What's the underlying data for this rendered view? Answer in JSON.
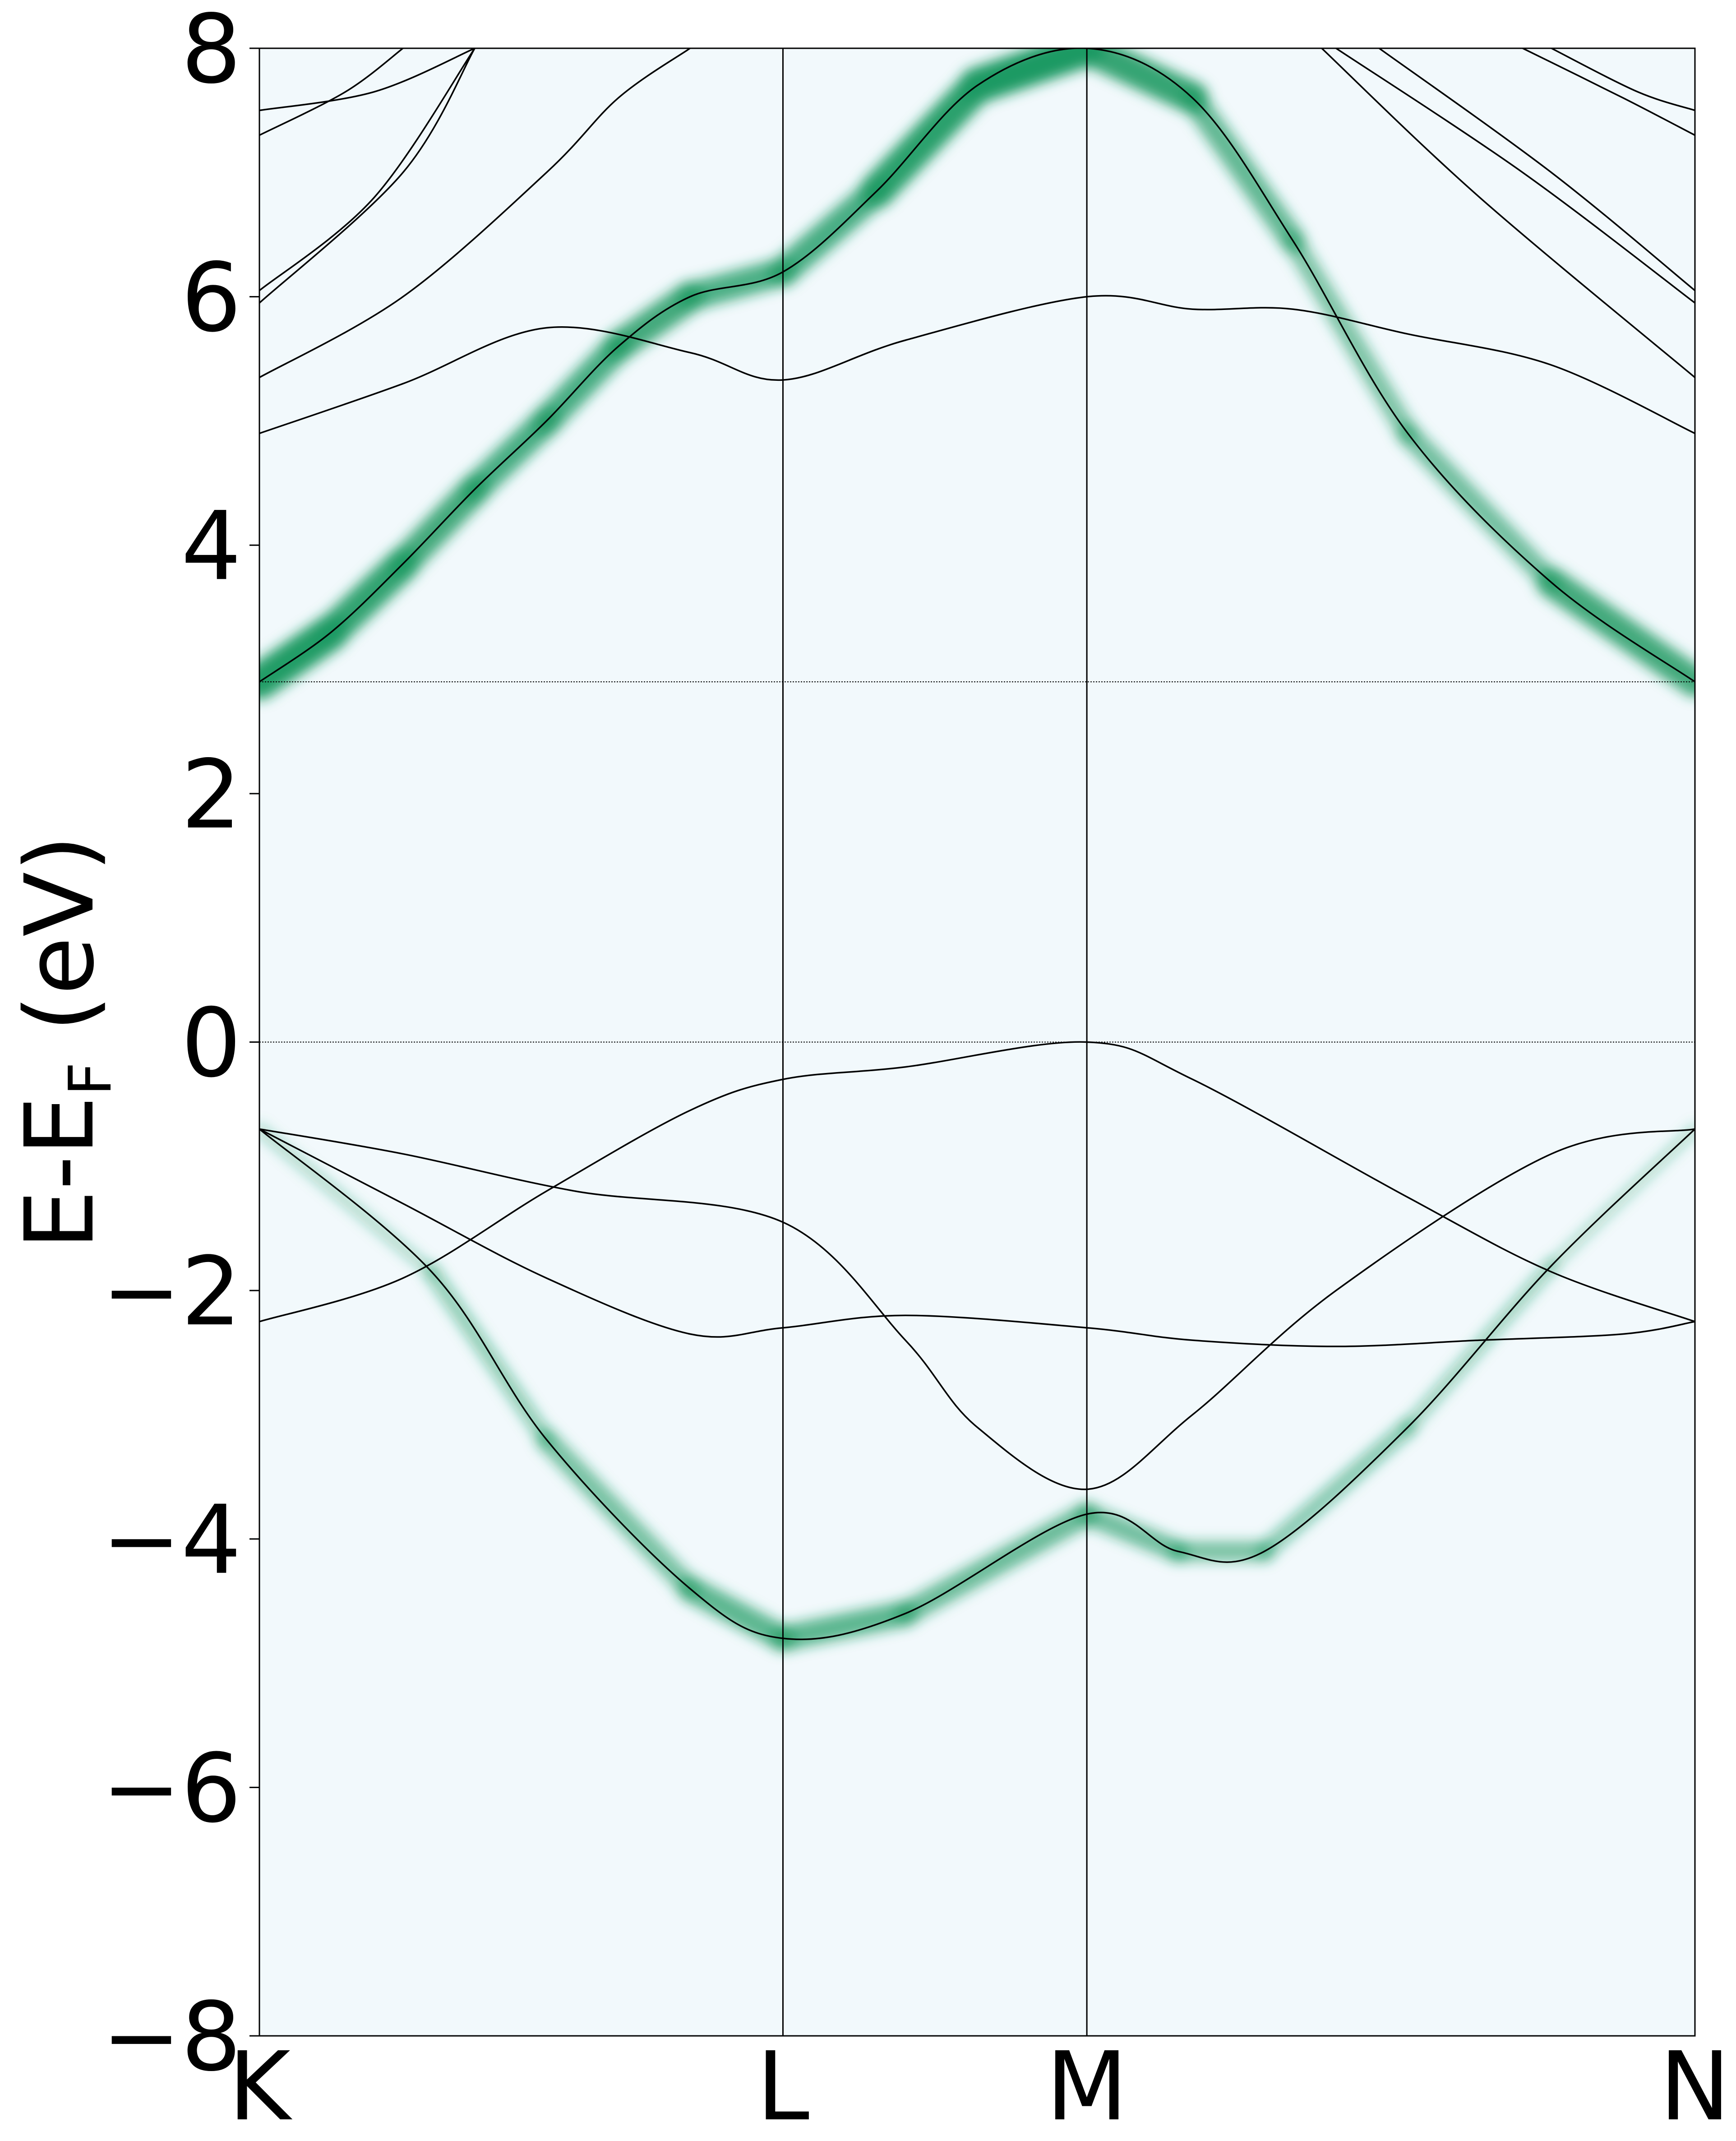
{
  "chart_data": {
    "type": "line",
    "title": "",
    "xlabel": "",
    "ylabel": "E-E",
    "ylabel_subscript": "F",
    "ylabel_suffix": " (eV)",
    "ylim": [
      -8,
      8
    ],
    "yticks": [
      {
        "value": -8,
        "label": "−8"
      },
      {
        "value": -6,
        "label": "−6"
      },
      {
        "value": -4,
        "label": "−4"
      },
      {
        "value": -2,
        "label": "−2"
      },
      {
        "value": 0,
        "label": "0"
      },
      {
        "value": 2,
        "label": "2"
      },
      {
        "value": 4,
        "label": "4"
      },
      {
        "value": 6,
        "label": "6"
      },
      {
        "value": 8,
        "label": "8"
      }
    ],
    "kpoints": [
      {
        "label": "K",
        "x": 0.0
      },
      {
        "label": "L",
        "x": 0.3647
      },
      {
        "label": "M",
        "x": 0.5764
      },
      {
        "label": "N",
        "x": 1.0
      }
    ],
    "hlines": [
      0.0,
      2.9
    ],
    "grid": false,
    "legend": "none",
    "colors": {
      "background": "#f2f9fc",
      "band_line": "#000000",
      "weight_high": "#1d9a63",
      "weight_low": "#f2f9fc"
    },
    "series": [
      {
        "x": [
          0.0,
          0.05,
          0.1,
          0.15,
          0.2,
          0.25,
          0.3,
          0.3647,
          0.43,
          0.5,
          0.5764,
          0.65,
          0.72,
          0.8,
          0.9,
          1.0
        ],
        "y": [
          2.9,
          3.3,
          3.85,
          4.45,
          5.0,
          5.6,
          6.0,
          6.2,
          6.85,
          7.7,
          8.0,
          7.6,
          6.45,
          4.9,
          3.7,
          2.9
        ],
        "weight": [
          1.0,
          0.95,
          0.8,
          0.75,
          0.7,
          0.75,
          0.8,
          0.6,
          0.85,
          1.0,
          1.0,
          0.7,
          0.45,
          0.4,
          0.55,
          1.0
        ]
      },
      {
        "x": [
          0.0,
          0.1,
          0.2,
          0.3,
          0.3647,
          0.45,
          0.5764,
          0.65,
          0.72,
          0.8,
          0.9,
          1.0
        ],
        "y": [
          4.9,
          5.3,
          5.75,
          5.55,
          5.33,
          5.65,
          6.0,
          5.9,
          5.9,
          5.7,
          5.45,
          4.9
        ],
        "weight": [
          0,
          0,
          0,
          0,
          0,
          0,
          0,
          0,
          0,
          0,
          0,
          0
        ]
      },
      {
        "x": [
          0.0,
          0.1,
          0.2,
          0.25,
          0.3
        ],
        "y": [
          5.35,
          6.0,
          7.0,
          7.6,
          8.0
        ],
        "weight": [
          0,
          0,
          0,
          0,
          0
        ]
      },
      {
        "x": [
          0.0,
          0.1,
          0.15
        ],
        "y": [
          5.95,
          7.0,
          8.0
        ],
        "weight": [
          0,
          0,
          0
        ]
      },
      {
        "x": [
          0.0,
          0.08,
          0.15
        ],
        "y": [
          6.05,
          6.8,
          8.0
        ],
        "weight": [
          0,
          0,
          0
        ]
      },
      {
        "x": [
          0.0,
          0.06,
          0.1
        ],
        "y": [
          7.3,
          7.65,
          8.0
        ],
        "weight": [
          0,
          0,
          0
        ]
      },
      {
        "x": [
          0.0,
          0.08,
          0.15
        ],
        "y": [
          7.5,
          7.65,
          8.0
        ],
        "weight": [
          0,
          0,
          0
        ]
      },
      {
        "x": [
          0.74,
          0.85,
          1.0
        ],
        "y": [
          8.0,
          6.8,
          5.35
        ],
        "weight": [
          0,
          0,
          0
        ]
      },
      {
        "x": [
          0.75,
          0.88,
          1.0
        ],
        "y": [
          8.0,
          7.0,
          5.95
        ],
        "weight": [
          0,
          0,
          0
        ]
      },
      {
        "x": [
          0.78,
          0.9,
          1.0
        ],
        "y": [
          8.0,
          7.0,
          6.05
        ],
        "weight": [
          0,
          0,
          0
        ]
      },
      {
        "x": [
          0.88,
          0.95,
          1.0
        ],
        "y": [
          8.0,
          7.6,
          7.3
        ],
        "weight": [
          0,
          0,
          0
        ]
      },
      {
        "x": [
          0.9,
          0.96,
          1.0
        ],
        "y": [
          8.0,
          7.65,
          7.5
        ],
        "weight": [
          0,
          0,
          0
        ]
      },
      {
        "x": [
          0.0,
          0.1,
          0.2,
          0.3,
          0.3647,
          0.45,
          0.5764,
          0.65,
          0.75,
          0.85,
          0.95,
          1.0
        ],
        "y": [
          -0.7,
          -1.3,
          -1.9,
          -2.35,
          -2.3,
          -2.2,
          -2.3,
          -2.4,
          -2.45,
          -2.4,
          -2.35,
          -2.25
        ],
        "weight": [
          0,
          0,
          0,
          0,
          0,
          0,
          0,
          0,
          0,
          0,
          0,
          0
        ]
      },
      {
        "x": [
          0.0,
          0.1,
          0.2,
          0.3,
          0.3647,
          0.45,
          0.5764,
          0.65,
          0.8,
          0.9,
          1.0
        ],
        "y": [
          -2.25,
          -1.9,
          -1.2,
          -0.55,
          -0.3,
          -0.2,
          0.0,
          -0.3,
          -1.25,
          -1.85,
          -2.25
        ],
        "weight": [
          0,
          0,
          0,
          0,
          0,
          0,
          0,
          0,
          0,
          0,
          0
        ]
      },
      {
        "x": [
          0.0,
          0.1,
          0.22,
          0.3647,
          0.45,
          0.5,
          0.5764,
          0.65,
          0.75,
          0.9,
          1.0
        ],
        "y": [
          -0.7,
          -0.9,
          -1.2,
          -1.45,
          -2.4,
          -3.1,
          -3.6,
          -3.0,
          -2.0,
          -0.9,
          -0.7
        ],
        "weight": [
          0,
          0,
          0,
          0,
          0,
          0,
          0,
          0,
          0,
          0,
          0
        ]
      },
      {
        "x": [
          0.0,
          0.12,
          0.2,
          0.3,
          0.3647,
          0.45,
          0.5764,
          0.64,
          0.7,
          0.8,
          0.9,
          1.0
        ],
        "y": [
          -0.7,
          -1.85,
          -3.2,
          -4.4,
          -4.8,
          -4.6,
          -3.8,
          -4.1,
          -4.1,
          -3.1,
          -1.8,
          -0.7
        ],
        "weight": [
          0,
          0.2,
          0.35,
          0.55,
          0.65,
          0.55,
          0.5,
          0.45,
          0.4,
          0.25,
          0.15,
          0
        ]
      }
    ]
  }
}
